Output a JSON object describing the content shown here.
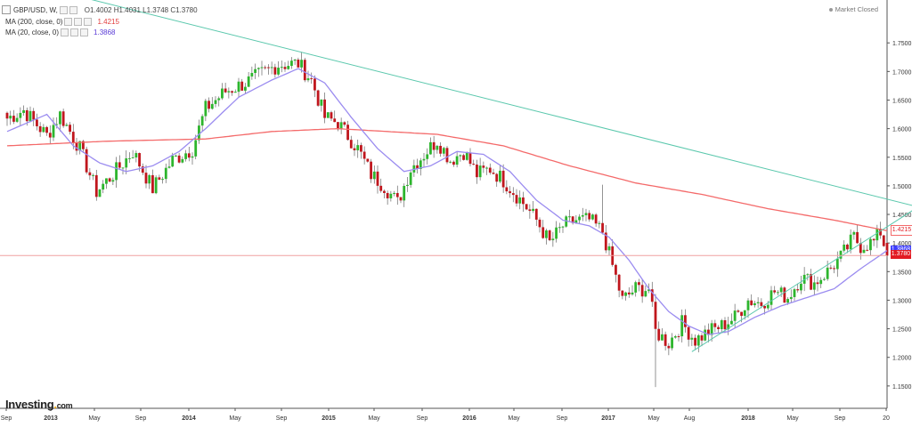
{
  "header": {
    "symbol": "GBP/USD, W, ",
    "ohlc": "O1.4002  H1.4031  L1.3748  C1.3780",
    "ma200_label": "MA (200, close, 0)",
    "ma200_value": "1.4215",
    "ma20_label": "MA (20, close, 0)",
    "ma20_value": "1.3868",
    "status": "Market Closed"
  },
  "logo": {
    "main": "Investing",
    "dot": ".",
    "suffix": "com"
  },
  "colors": {
    "up": "#2db52d",
    "down": "#c0161d",
    "ma200": "#f46a6a",
    "ma20": "#9b8cf0",
    "trend": "#5bc8ad",
    "current_line": "#f0a0a0",
    "current_bg": "#e21b23",
    "ma20_bg": "#3c3cff"
  },
  "price_labels": {
    "ma200": "1.4215",
    "ma20": "1.3868",
    "close": "1.3780"
  },
  "chart_data": {
    "type": "candlestick",
    "x_ticks": [
      "Sep",
      "2013",
      "May",
      "Sep",
      "2014",
      "May",
      "Sep",
      "2015",
      "May",
      "Sep",
      "2016",
      "May",
      "Sep",
      "2017",
      "May",
      "Aug",
      "2018",
      "May",
      "Sep",
      "20"
    ],
    "y_ticks": [
      "1.7500",
      "1.7000",
      "1.6500",
      "1.6000",
      "1.5500",
      "1.5000",
      "1.4500",
      "1.4000",
      "1.3500",
      "1.3000",
      "1.2500",
      "1.2000",
      "1.1500"
    ],
    "ylim": [
      1.135,
      1.805
    ],
    "close_anchors": [
      [
        0,
        1.618
      ],
      [
        5,
        1.632
      ],
      [
        12,
        1.588
      ],
      [
        16,
        1.625
      ],
      [
        22,
        1.565
      ],
      [
        27,
        1.49
      ],
      [
        32,
        1.52
      ],
      [
        38,
        1.56
      ],
      [
        44,
        1.495
      ],
      [
        50,
        1.545
      ],
      [
        56,
        1.565
      ],
      [
        60,
        1.635
      ],
      [
        66,
        1.665
      ],
      [
        72,
        1.68
      ],
      [
        78,
        1.7
      ],
      [
        82,
        1.712
      ],
      [
        88,
        1.714
      ],
      [
        92,
        1.685
      ],
      [
        96,
        1.62
      ],
      [
        100,
        1.61
      ],
      [
        106,
        1.565
      ],
      [
        110,
        1.52
      ],
      [
        114,
        1.5
      ],
      [
        118,
        1.47
      ],
      [
        122,
        1.53
      ],
      [
        126,
        1.555
      ],
      [
        130,
        1.58
      ],
      [
        134,
        1.545
      ],
      [
        138,
        1.56
      ],
      [
        142,
        1.52
      ],
      [
        146,
        1.53
      ],
      [
        150,
        1.51
      ],
      [
        156,
        1.47
      ],
      [
        160,
        1.44
      ],
      [
        164,
        1.4
      ],
      [
        168,
        1.43
      ],
      [
        172,
        1.44
      ],
      [
        176,
        1.44
      ],
      [
        180,
        1.42
      ],
      [
        183,
        1.36
      ],
      [
        186,
        1.3
      ],
      [
        190,
        1.32
      ],
      [
        194,
        1.32
      ],
      [
        196,
        1.245
      ],
      [
        200,
        1.225
      ],
      [
        204,
        1.26
      ],
      [
        208,
        1.23
      ],
      [
        212,
        1.245
      ],
      [
        216,
        1.255
      ],
      [
        220,
        1.27
      ],
      [
        224,
        1.3
      ],
      [
        228,
        1.295
      ],
      [
        232,
        1.315
      ],
      [
        236,
        1.305
      ],
      [
        240,
        1.34
      ],
      [
        244,
        1.33
      ],
      [
        248,
        1.35
      ],
      [
        252,
        1.375
      ],
      [
        256,
        1.41
      ],
      [
        258,
        1.395
      ],
      [
        262,
        1.402
      ],
      [
        264,
        1.42
      ],
      [
        266,
        1.378
      ]
    ],
    "last_candle": {
      "open": 1.4002,
      "high": 1.4031,
      "low": 1.3748,
      "close": 1.378
    },
    "series": [
      {
        "name": "MA (200, close, 0)",
        "last": 1.4215,
        "anchors": [
          [
            0,
            1.57
          ],
          [
            30,
            1.578
          ],
          [
            60,
            1.582
          ],
          [
            80,
            1.595
          ],
          [
            100,
            1.6
          ],
          [
            130,
            1.59
          ],
          [
            150,
            1.57
          ],
          [
            170,
            1.535
          ],
          [
            190,
            1.505
          ],
          [
            210,
            1.485
          ],
          [
            230,
            1.46
          ],
          [
            250,
            1.44
          ],
          [
            266,
            1.4215
          ]
        ]
      },
      {
        "name": "MA (20, close, 0)",
        "last": 1.3868,
        "anchors": [
          [
            0,
            1.595
          ],
          [
            12,
            1.625
          ],
          [
            20,
            1.57
          ],
          [
            28,
            1.54
          ],
          [
            36,
            1.525
          ],
          [
            44,
            1.535
          ],
          [
            52,
            1.56
          ],
          [
            60,
            1.6
          ],
          [
            70,
            1.655
          ],
          [
            80,
            1.685
          ],
          [
            88,
            1.705
          ],
          [
            96,
            1.68
          ],
          [
            104,
            1.62
          ],
          [
            112,
            1.565
          ],
          [
            120,
            1.525
          ],
          [
            128,
            1.535
          ],
          [
            136,
            1.56
          ],
          [
            144,
            1.555
          ],
          [
            152,
            1.525
          ],
          [
            160,
            1.475
          ],
          [
            168,
            1.44
          ],
          [
            176,
            1.43
          ],
          [
            182,
            1.41
          ],
          [
            188,
            1.37
          ],
          [
            194,
            1.32
          ],
          [
            200,
            1.28
          ],
          [
            206,
            1.255
          ],
          [
            212,
            1.24
          ],
          [
            218,
            1.245
          ],
          [
            226,
            1.27
          ],
          [
            234,
            1.29
          ],
          [
            242,
            1.305
          ],
          [
            250,
            1.32
          ],
          [
            258,
            1.355
          ],
          [
            266,
            1.3868
          ]
        ]
      }
    ],
    "trendlines": [
      {
        "from": [
          -5,
          1.87
        ],
        "to": [
          281,
          1.455
        ]
      },
      {
        "from": [
          207,
          1.21
        ],
        "to": [
          284,
          1.495
        ]
      }
    ],
    "current_price_line": 1.378
  }
}
